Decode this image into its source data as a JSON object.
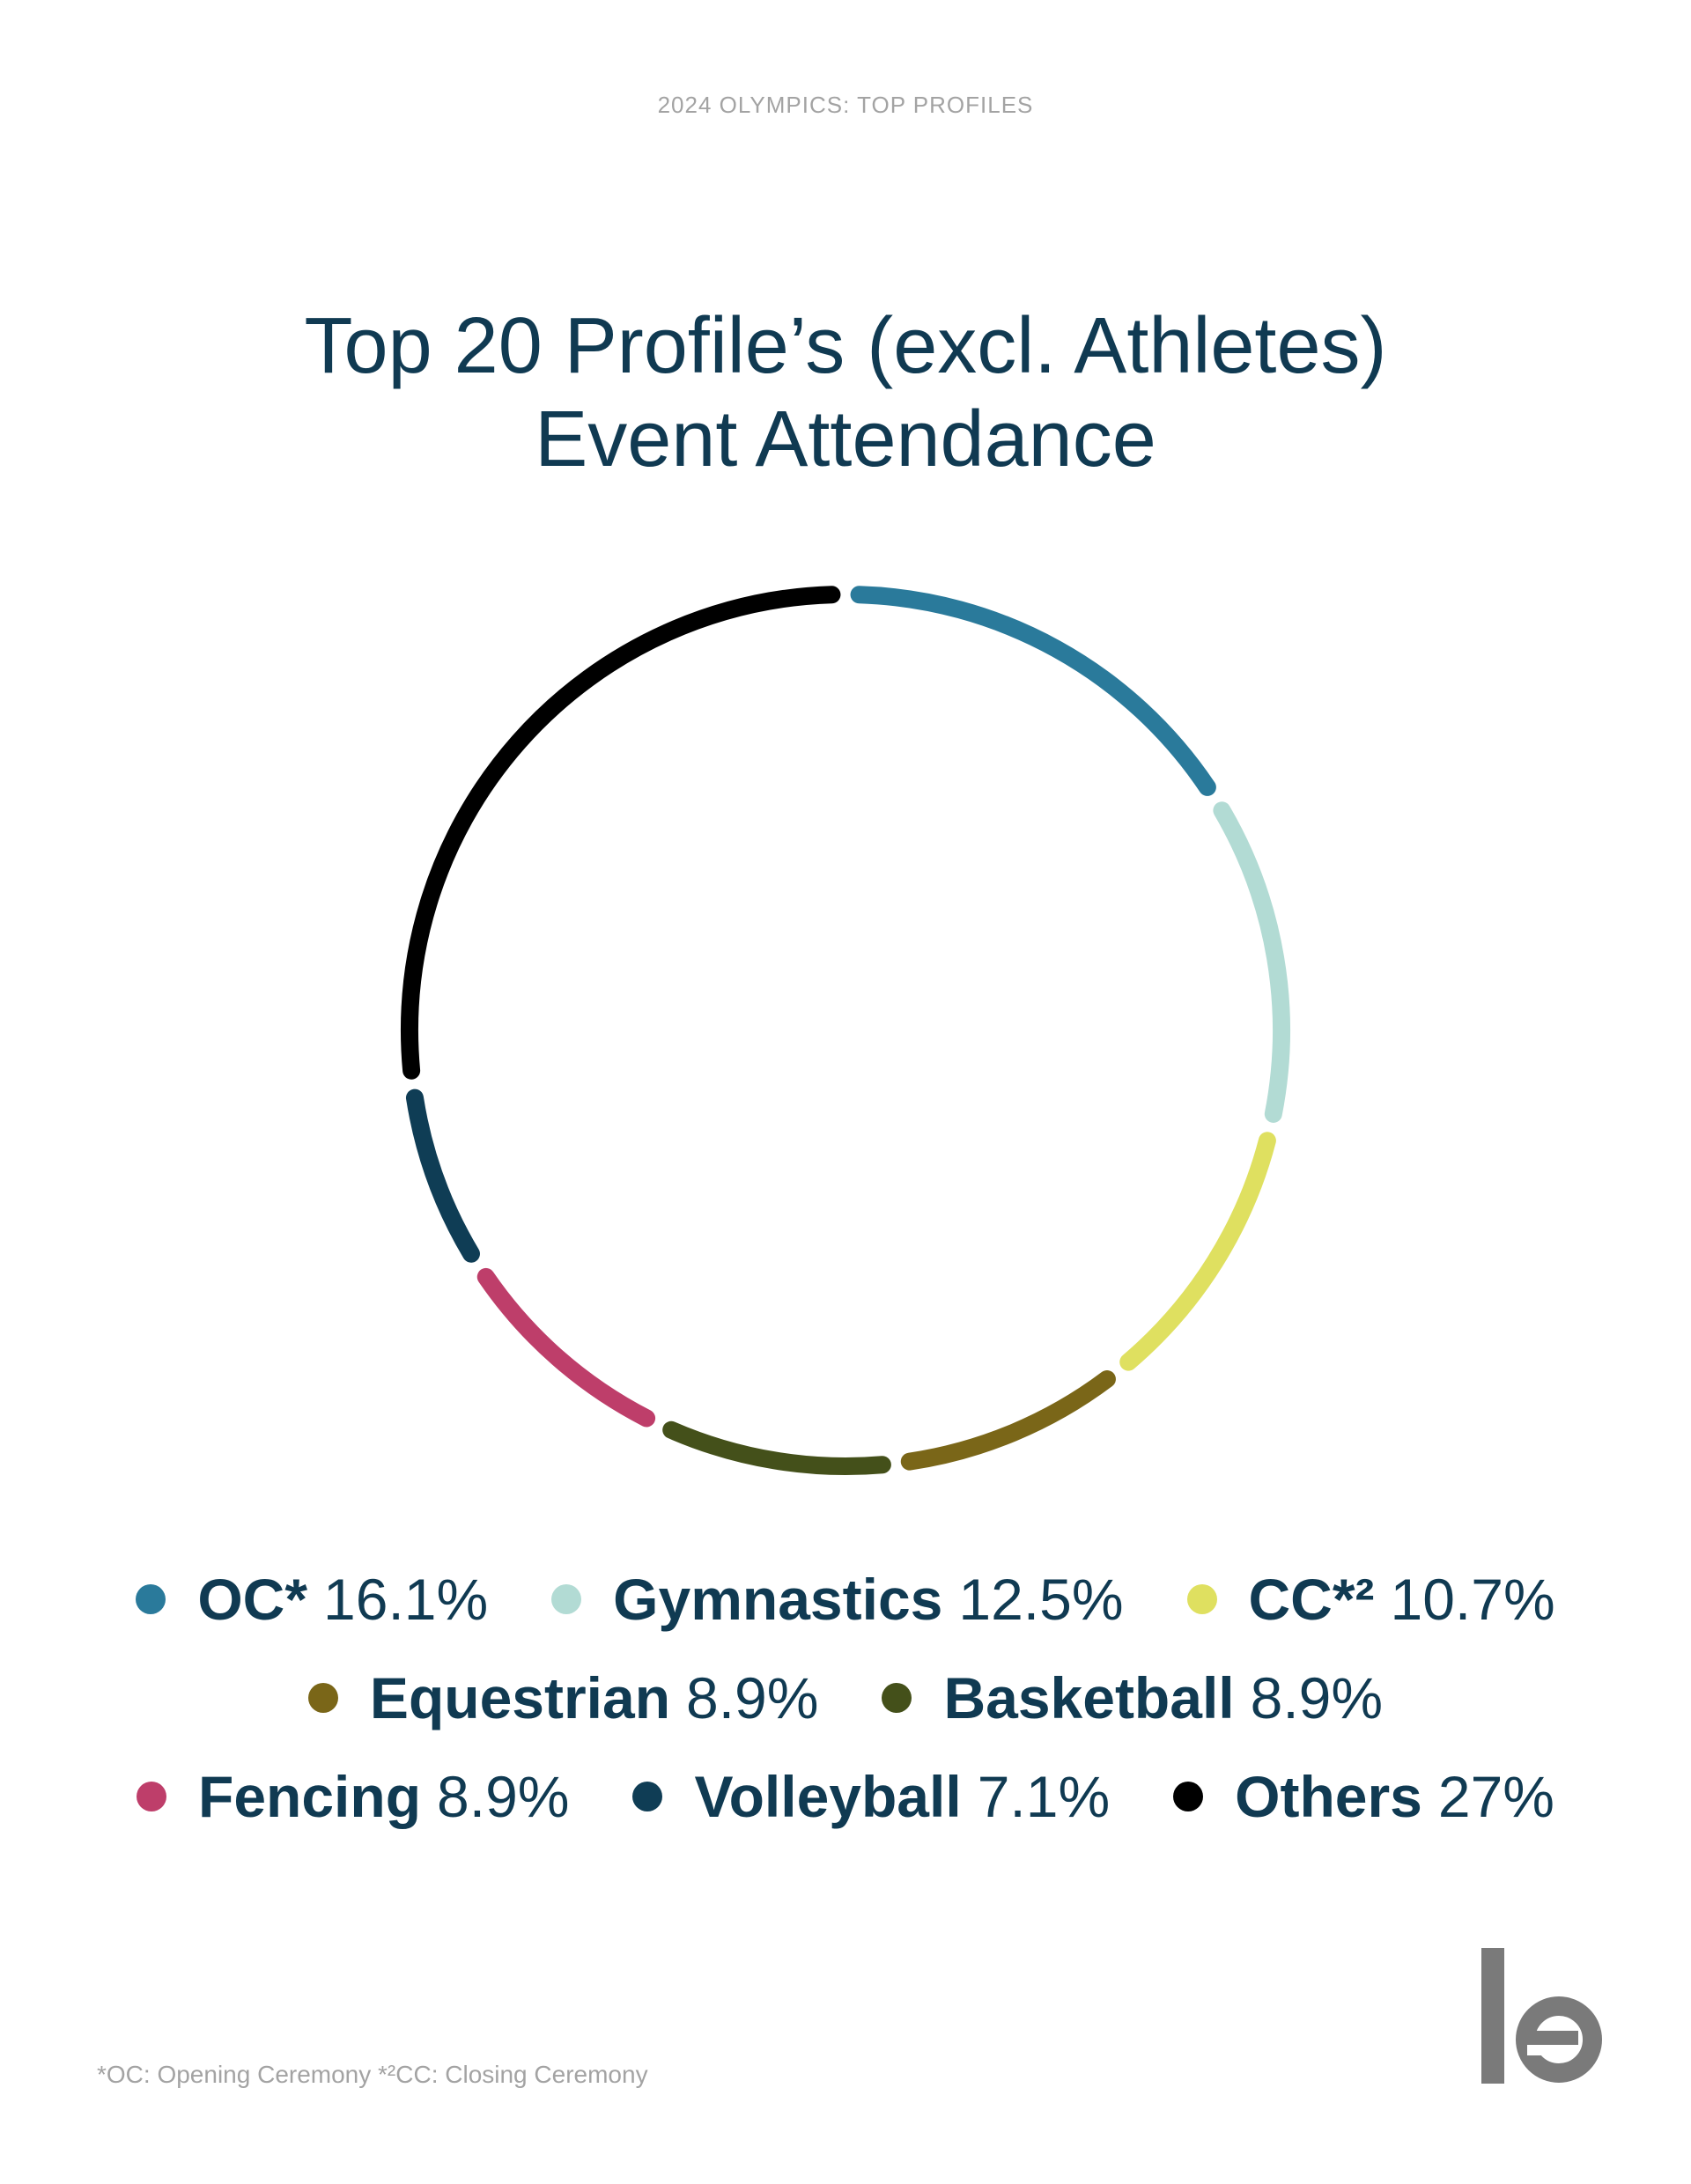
{
  "header": "2024 OLYMPICS: TOP PROFILES",
  "title_line1": "Top 20 Profile’s (excl. Athletes)",
  "title_line2": "Event Attendance",
  "chart_data": {
    "type": "pie",
    "style": "donut-ring",
    "title": "Top 20 Profile’s (excl. Athletes) Event Attendance",
    "categories": [
      "OC*",
      "Gymnastics",
      "CC*²",
      "Equestrian",
      "Basketball",
      "Fencing",
      "Volleyball",
      "Others"
    ],
    "values": [
      16.1,
      12.5,
      10.7,
      8.9,
      8.9,
      8.9,
      7.1,
      27
    ],
    "value_labels": [
      "16.1%",
      "12.5%",
      "10.7%",
      "8.9%",
      "8.9%",
      "8.9%",
      "7.1%",
      "27%"
    ],
    "colors": [
      "#2a7a9b",
      "#b2dbd4",
      "#dfe060",
      "#7a6618",
      "#44501a",
      "#be3e6a",
      "#0f3d55",
      "#000000"
    ],
    "legend_placement": "bottom"
  },
  "legend_rows": [
    [
      {
        "name": "OC*",
        "value": "16.1%",
        "color": "#2a7a9b"
      },
      {
        "name": "Gymnastics",
        "value": "12.5%",
        "color": "#b2dbd4"
      },
      {
        "name": "CC*²",
        "value": "10.7%",
        "color": "#dfe060"
      }
    ],
    [
      {
        "name": "Equestrian",
        "value": "8.9%",
        "color": "#7a6618"
      },
      {
        "name": "Basketball",
        "value": "8.9%",
        "color": "#44501a"
      }
    ],
    [
      {
        "name": "Fencing",
        "value": "8.9%",
        "color": "#be3e6a"
      },
      {
        "name": "Volleyball",
        "value": "7.1%",
        "color": "#0f3d55"
      },
      {
        "name": "Others",
        "value": "27%",
        "color": "#000000"
      }
    ]
  ],
  "footnote": "*OC: Opening Ceremony *²CC: Closing Ceremony",
  "logo": {
    "text": "le",
    "color": "#7a7a7a"
  }
}
